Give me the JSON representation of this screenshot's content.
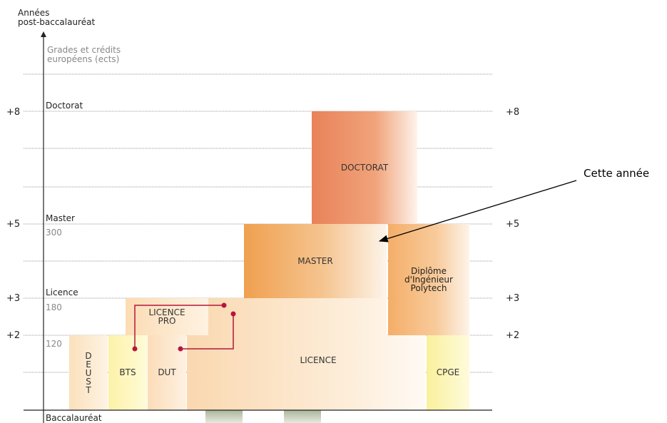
{
  "axis": {
    "title_line1": "Années",
    "title_line2": "post-baccalauréat",
    "grades_line1": "Grades et crédits",
    "grades_line2": "européens (ects)",
    "baseline": "Baccalauréat"
  },
  "levels": {
    "l8": {
      "value": "+8",
      "grade": "Doctorat",
      "credits": ""
    },
    "l5": {
      "value": "+5",
      "grade": "Master",
      "credits": "300"
    },
    "l3": {
      "value": "+3",
      "grade": "Licence",
      "credits": "180"
    },
    "l2": {
      "value": "+2",
      "grade": "",
      "credits": "120"
    }
  },
  "boxes": {
    "doctorat": "DOCTORAT",
    "master": "MASTER",
    "ingenieur_line1": "Diplôme",
    "ingenieur_line2": "d'Ingénieur",
    "ingenieur_line3": "Polytech",
    "licence_pro_line1": "LICENCE",
    "licence_pro_line2": "PRO",
    "licence": "LICENCE",
    "deust": [
      "D",
      "E",
      "U",
      "S",
      "T"
    ],
    "bts": "BTS",
    "dut": "DUT",
    "cpge": "CPGE"
  },
  "annotation": "Cette année",
  "colors": {
    "doctorat": "#e8825a",
    "master": "#f0a050",
    "ingenieur": "#f4b06a",
    "licence": "#fbe3c3",
    "licence_pro": "#fde6c4",
    "deust": "#fde8c6",
    "bts": "#fdf7b8",
    "dut": "#fde6c6",
    "cpge": "#fbf7b4",
    "path": "#b5163c"
  }
}
